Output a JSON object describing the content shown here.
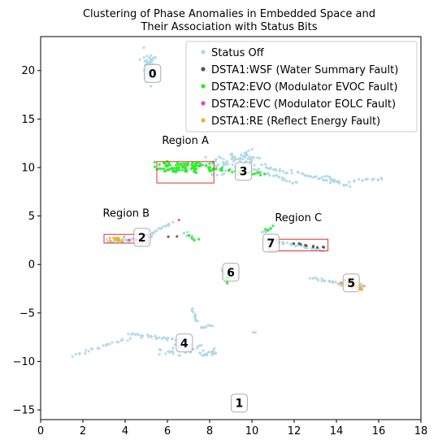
{
  "chart_data": {
    "type": "scatter",
    "title_lines": [
      "Clustering of Phase Anomalies in Embedded Space and",
      "Their Association with Status Bits"
    ],
    "xlabel": "",
    "ylabel": "",
    "xlim": [
      0,
      18
    ],
    "ylim": [
      -16,
      23.5
    ],
    "x_ticks": [
      0,
      2,
      4,
      6,
      8,
      10,
      12,
      14,
      16,
      18
    ],
    "y_ticks": [
      -15,
      -10,
      -5,
      0,
      5,
      10,
      15,
      20
    ],
    "grid": false,
    "legend_position": "top-right",
    "series": [
      {
        "name": "Status Off",
        "color": "#add8e6"
      },
      {
        "name": "DSTA1:WSF (Water Summary Fault)",
        "color": "#555555"
      },
      {
        "name": "DSTA2:EVO (Modulator EVOC Fault)",
        "color": "#22ee22"
      },
      {
        "name": "DSTA2:EVC (Modulator EOLC Fault)",
        "color": "#dd44cc"
      },
      {
        "name": "DSTA1:RE (Reflect Energy Fault)",
        "color": "#f0b030"
      }
    ],
    "point_groups": [
      {
        "series": 0,
        "shape": "blob",
        "center": [
          5.1,
          20.3
        ],
        "spread": [
          0.15,
          0.9
        ],
        "count": 40
      },
      {
        "series": 0,
        "shape": "line",
        "from": [
          5.3,
          21.3
        ],
        "to": [
          5.0,
          19.2
        ],
        "count": 12
      },
      {
        "series": 0,
        "shape": "blob",
        "center": [
          8.4,
          9.9
        ],
        "spread": [
          0.25,
          0.5
        ],
        "count": 20
      },
      {
        "series": 0,
        "shape": "blob",
        "center": [
          8.9,
          10.7
        ],
        "spread": [
          0.5,
          0.4
        ],
        "count": 30
      },
      {
        "series": 0,
        "shape": "blob",
        "center": [
          9.7,
          10.9
        ],
        "spread": [
          0.4,
          0.4
        ],
        "count": 35
      },
      {
        "series": 0,
        "shape": "line",
        "from": [
          10.0,
          9.9
        ],
        "to": [
          12.2,
          8.3
        ],
        "count": 25
      },
      {
        "series": 0,
        "shape": "line",
        "from": [
          10.5,
          10.2
        ],
        "to": [
          11.6,
          9.4
        ],
        "count": 15
      },
      {
        "series": 0,
        "shape": "line",
        "from": [
          11.9,
          9.6
        ],
        "to": [
          14.6,
          8.1
        ],
        "count": 30
      },
      {
        "series": 0,
        "shape": "line",
        "from": [
          14.7,
          8.6
        ],
        "to": [
          16.2,
          8.9
        ],
        "count": 15
      },
      {
        "series": 0,
        "shape": "line",
        "from": [
          13.4,
          9.1
        ],
        "to": [
          14.1,
          8.5
        ],
        "count": 10
      },
      {
        "series": 0,
        "shape": "line",
        "from": [
          3.1,
          2.4
        ],
        "to": [
          4.9,
          2.6
        ],
        "count": 30
      },
      {
        "series": 0,
        "shape": "line",
        "from": [
          4.9,
          2.7
        ],
        "to": [
          6.2,
          4.3
        ],
        "count": 20
      },
      {
        "series": 0,
        "shape": "line",
        "from": [
          6.8,
          3.4
        ],
        "to": [
          7.2,
          2.6
        ],
        "count": 8
      },
      {
        "series": 0,
        "shape": "line",
        "from": [
          10.5,
          3.3
        ],
        "to": [
          10.9,
          3.7
        ],
        "count": 10
      },
      {
        "series": 0,
        "shape": "line",
        "from": [
          10.6,
          2.6
        ],
        "to": [
          13.4,
          1.4
        ],
        "count": 35
      },
      {
        "series": 0,
        "shape": "line",
        "from": [
          12.8,
          -1.4
        ],
        "to": [
          15.2,
          -2.5
        ],
        "count": 30
      },
      {
        "series": 0,
        "shape": "blob",
        "center": [
          15.0,
          -2.3
        ],
        "spread": [
          0.2,
          0.2
        ],
        "count": 15
      },
      {
        "series": 0,
        "shape": "line",
        "from": [
          8.6,
          -0.4
        ],
        "to": [
          8.8,
          -1.3
        ],
        "count": 10
      },
      {
        "series": 0,
        "shape": "line",
        "from": [
          7.2,
          -4.7
        ],
        "to": [
          7.4,
          -5.8
        ],
        "count": 10
      },
      {
        "series": 0,
        "shape": "line",
        "from": [
          1.5,
          -9.4
        ],
        "to": [
          4.2,
          -7.6
        ],
        "count": 22
      },
      {
        "series": 0,
        "shape": "line",
        "from": [
          4.2,
          -7.2
        ],
        "to": [
          6.6,
          -7.8
        ],
        "count": 28
      },
      {
        "series": 0,
        "shape": "blob",
        "center": [
          7.0,
          -8.8
        ],
        "spread": [
          0.55,
          0.35
        ],
        "count": 50
      },
      {
        "series": 0,
        "shape": "line",
        "from": [
          7.7,
          -9.3
        ],
        "to": [
          8.3,
          -9.2
        ],
        "count": 8
      },
      {
        "series": 0,
        "shape": "line",
        "from": [
          7.6,
          -6.6
        ],
        "to": [
          8.1,
          -6.2
        ],
        "count": 8
      },
      {
        "series": 0,
        "shape": "blob",
        "center": [
          10.1,
          -7.0
        ],
        "spread": [
          0.05,
          0.05
        ],
        "count": 2
      },
      {
        "series": 2,
        "shape": "blob",
        "center": [
          6.9,
          10.0
        ],
        "spread": [
          0.75,
          0.35
        ],
        "count": 90
      },
      {
        "series": 2,
        "shape": "line",
        "from": [
          7.9,
          9.9
        ],
        "to": [
          10.6,
          9.3
        ],
        "count": 25
      },
      {
        "series": 2,
        "shape": "line",
        "from": [
          7.0,
          3.0
        ],
        "to": [
          7.4,
          2.5
        ],
        "count": 6
      },
      {
        "series": 2,
        "shape": "line",
        "from": [
          10.7,
          3.5
        ],
        "to": [
          11.0,
          3.9
        ],
        "count": 4
      },
      {
        "series": 2,
        "shape": "line",
        "from": [
          8.8,
          -1.4
        ],
        "to": [
          8.9,
          -1.9
        ],
        "count": 5
      },
      {
        "series": 1,
        "shape": "line",
        "from": [
          12.0,
          2.2
        ],
        "to": [
          13.4,
          1.7
        ],
        "count": 10
      },
      {
        "series": 1,
        "shape": "line",
        "from": [
          6.0,
          2.9
        ],
        "to": [
          6.3,
          2.9
        ],
        "count": 2
      },
      {
        "series": 3,
        "shape": "line",
        "from": [
          6.5,
          4.6
        ],
        "to": [
          6.6,
          4.6
        ],
        "count": 1
      },
      {
        "series": 3,
        "shape": "line",
        "from": [
          4.3,
          2.6
        ],
        "to": [
          4.6,
          2.7
        ],
        "count": 2
      },
      {
        "series": 3,
        "shape": "line",
        "from": [
          14.4,
          -1.6
        ],
        "to": [
          14.5,
          -1.6
        ],
        "count": 1
      },
      {
        "series": 4,
        "shape": "blob",
        "center": [
          3.6,
          2.6
        ],
        "spread": [
          0.25,
          0.15
        ],
        "count": 18
      },
      {
        "series": 4,
        "shape": "line",
        "from": [
          14.2,
          -1.9
        ],
        "to": [
          15.2,
          -2.3
        ],
        "count": 14
      },
      {
        "series": 4,
        "shape": "blob",
        "center": [
          14.9,
          -2.3
        ],
        "spread": [
          0.2,
          0.15
        ],
        "count": 12
      }
    ],
    "regions": [
      {
        "label": "Region A",
        "x_range": [
          5.5,
          8.2
        ],
        "y_range": [
          8.4,
          10.6
        ]
      },
      {
        "label": "Region B",
        "x_range": [
          3.0,
          5.1
        ],
        "y_range": [
          2.2,
          3.1
        ]
      },
      {
        "label": "Region C",
        "x_range": [
          10.8,
          13.6
        ],
        "y_range": [
          1.4,
          2.6
        ]
      }
    ],
    "cluster_labels": [
      {
        "text": "0",
        "x": 5.3,
        "y": 19.7
      },
      {
        "text": "1",
        "x": 9.4,
        "y": -14.3
      },
      {
        "text": "2",
        "x": 4.8,
        "y": 2.8
      },
      {
        "text": "3",
        "x": 9.6,
        "y": 9.6
      },
      {
        "text": "4",
        "x": 6.8,
        "y": -8.1
      },
      {
        "text": "5",
        "x": 14.7,
        "y": -1.9
      },
      {
        "text": "6",
        "x": 9.0,
        "y": -0.8
      },
      {
        "text": "7",
        "x": 10.9,
        "y": 2.2
      }
    ]
  }
}
